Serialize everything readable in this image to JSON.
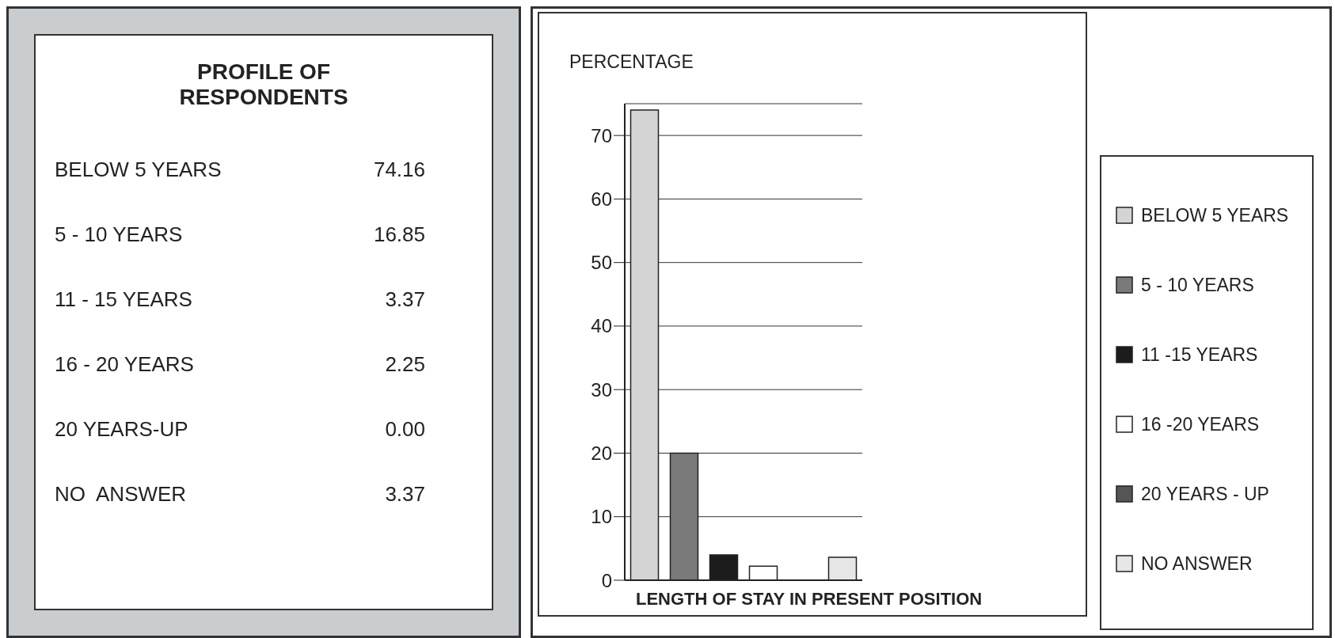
{
  "chart_data": [
    {
      "type": "other",
      "title": "PROFILE OF RESPONDENTS",
      "categories": [
        "BELOW 5 YEARS",
        "5 - 10 YEARS",
        "11 - 15 YEARS",
        "16 - 20 YEARS",
        "20 YEARS-UP",
        "NO  ANSWER"
      ],
      "value_labels": [
        "74.16",
        "16.85",
        "3.37",
        "2.25",
        "0.00",
        "3.37"
      ]
    },
    {
      "type": "bar",
      "ylabel": "PERCENTAGE",
      "xlabel": "LENGTH OF STAY IN PRESENT POSITION",
      "categories": [
        null,
        null,
        null,
        null,
        null,
        null
      ],
      "stacked": true,
      "series": [
        {
          "name": "BELOW 5 YEARS",
          "color": "#d4d4d4",
          "values": [
            74,
            null,
            null,
            null,
            null,
            null
          ]
        },
        {
          "name": "5 - 10 YEARS",
          "color": "#7a7a7a",
          "values": [
            null,
            20,
            null,
            null,
            null,
            null
          ]
        },
        {
          "name": "11 -15 YEARS",
          "color": "#1c1c1c",
          "values": [
            null,
            null,
            4,
            null,
            null,
            null
          ]
        },
        {
          "name": "16 -20 YEARS",
          "color": "#ffffff",
          "values": [
            null,
            null,
            null,
            2.2,
            null,
            null
          ]
        },
        {
          "name": "20 YEARS - UP",
          "color": "#555555",
          "values": [
            null,
            null,
            null,
            null,
            0,
            null
          ]
        },
        {
          "name": "NO ANSWER",
          "color": "#e6e6e6",
          "values": [
            null,
            null,
            null,
            null,
            null,
            3.6
          ]
        }
      ],
      "ylim": [
        0,
        75
      ],
      "yticks": [
        0,
        10,
        20,
        30,
        40,
        50,
        60,
        70
      ],
      "grid": "y",
      "legend": "right",
      "tick_labels": "y"
    }
  ]
}
